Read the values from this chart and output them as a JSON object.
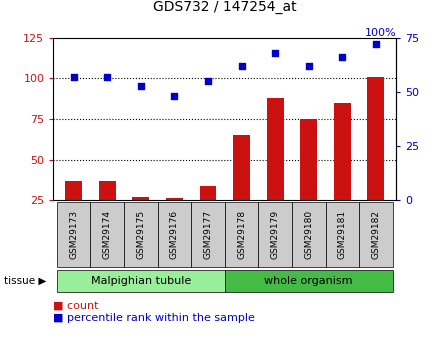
{
  "title": "GDS732 / 147254_at",
  "samples": [
    "GSM29173",
    "GSM29174",
    "GSM29175",
    "GSM29176",
    "GSM29177",
    "GSM29178",
    "GSM29179",
    "GSM29180",
    "GSM29181",
    "GSM29182"
  ],
  "count": [
    37,
    37,
    27,
    26,
    34,
    65,
    88,
    75,
    85,
    101
  ],
  "percentile": [
    57,
    57,
    53,
    48,
    55,
    62,
    68,
    62,
    66,
    72
  ],
  "left_ylim": [
    25,
    125
  ],
  "right_ylim": [
    0,
    75
  ],
  "left_yticks": [
    25,
    50,
    75,
    100,
    125
  ],
  "right_yticks": [
    0,
    25,
    50,
    75
  ],
  "bar_color": "#cc1111",
  "dot_color": "#0000cc",
  "tissue_groups": [
    {
      "label": "Malpighian tubule",
      "start": 0,
      "end": 5,
      "color": "#99ee99"
    },
    {
      "label": "whole organism",
      "start": 5,
      "end": 10,
      "color": "#44bb44"
    }
  ],
  "tissue_label": "tissue",
  "legend_count_label": "count",
  "legend_percentile_label": "percentile rank within the sample",
  "background_color": "#ffffff",
  "tick_color_left": "#cc1111",
  "tick_color_right": "#0000cc",
  "grid_dotted_at": [
    50,
    75,
    100
  ],
  "sample_box_color": "#cccccc",
  "right_top_label": "100%"
}
